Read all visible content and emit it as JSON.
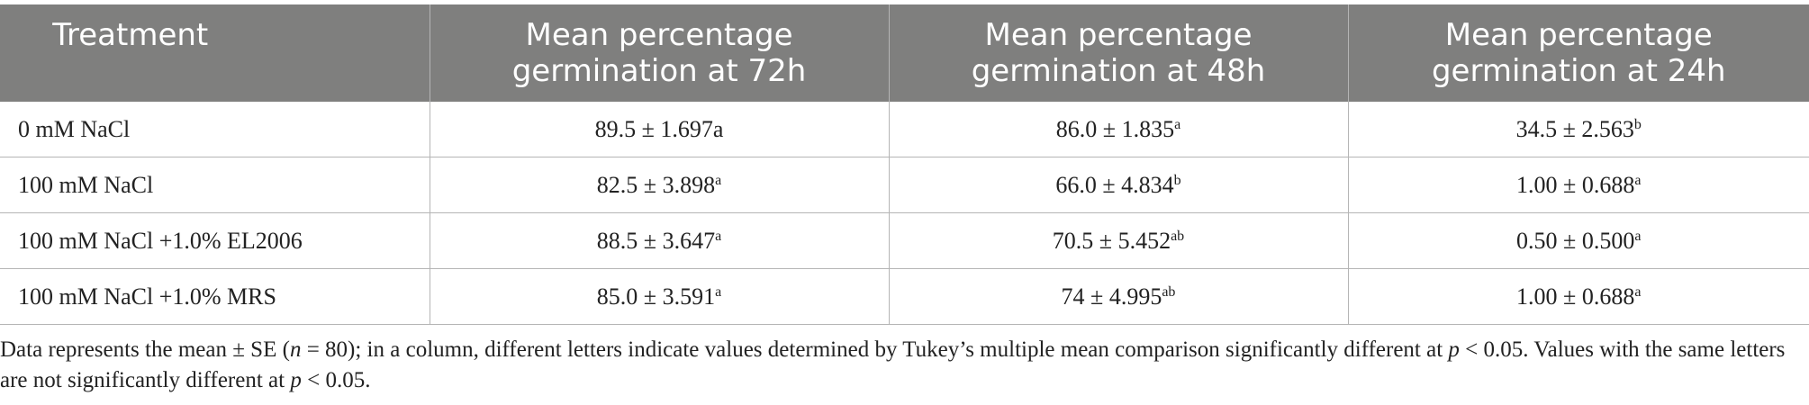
{
  "table": {
    "header": [
      "Treatment",
      "Mean percentage germination at 72h",
      "Mean percentage germination at 48h",
      "Mean percentage germination at 24h"
    ],
    "rows": [
      [
        "0 mM NaCl",
        {
          "text": "89.5 ± 1.697a"
        },
        {
          "text": "86.0 ± 1.835",
          "sup": "a"
        },
        {
          "text": "34.5 ± 2.563",
          "sup": "b"
        }
      ],
      [
        "100 mM NaCl",
        {
          "text": "82.5 ± 3.898",
          "sup": "a"
        },
        {
          "text": "66.0 ± 4.834",
          "sup": "b"
        },
        {
          "text": "1.00 ± 0.688",
          "sup": "a"
        }
      ],
      [
        "100 mM NaCl +1.0% EL2006",
        {
          "text": "88.5 ± 3.647",
          "sup": "a"
        },
        {
          "text": "70.5 ± 5.452",
          "sup": "ab"
        },
        {
          "text": "0.50 ± 0.500",
          "sup": "a"
        }
      ],
      [
        "100 mM NaCl +1.0% MRS",
        {
          "text": "85.0 ± 3.591",
          "sup": "a"
        },
        {
          "text": "74 ± 4.995",
          "sup": "ab"
        },
        {
          "text": "1.00 ± 0.688",
          "sup": "a"
        }
      ]
    ]
  },
  "footnote": [
    "Data represents the mean ± SE (",
    "n",
    " = 80); in a column, different letters indicate values determined by Tukey’s multiple mean comparison significantly different at ",
    "p",
    " < 0.05. Values with the same letters are not significantly different at ",
    "p",
    " < 0.05."
  ]
}
